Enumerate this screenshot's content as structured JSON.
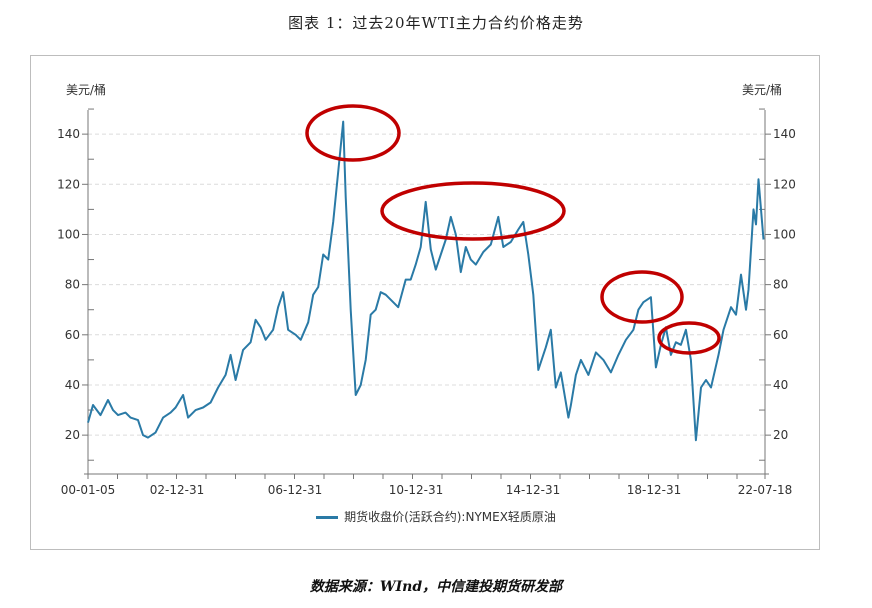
{
  "title": "图表 1：过去20年WTI主力合约价格走势",
  "source": "数据来源：WInd，中信建投期货研发部",
  "chart_data": {
    "type": "line",
    "title": "图表 1：过去20年WTI主力合约价格走势",
    "xlabel": "",
    "ylabel_left": "美元/桶",
    "ylabel_right": "美元/桶",
    "ylim": [
      0,
      150
    ],
    "yticks": [
      20,
      40,
      60,
      80,
      100,
      120,
      140
    ],
    "xtick_labels": [
      "00-01-05",
      "02-12-31",
      "06-12-31",
      "10-12-31",
      "14-12-31",
      "18-12-31",
      "22-07-18"
    ],
    "grid": "horizontal dashed",
    "legend_position": "bottom",
    "series": [
      {
        "name": "期货收盘价(活跃合约):NYMEX轻质原油",
        "color": "#2a7aa6",
        "x": [
          "2000-01",
          "2000-03",
          "2000-06",
          "2000-09",
          "2000-11",
          "2001-01",
          "2001-04",
          "2001-06",
          "2001-09",
          "2001-11",
          "2002-01",
          "2002-04",
          "2002-07",
          "2002-10",
          "2002-12",
          "2003-03",
          "2003-05",
          "2003-08",
          "2003-11",
          "2004-02",
          "2004-05",
          "2004-08",
          "2004-10",
          "2004-12",
          "2005-03",
          "2005-06",
          "2005-08",
          "2005-10",
          "2005-12",
          "2006-03",
          "2006-05",
          "2006-07",
          "2006-09",
          "2006-12",
          "2007-02",
          "2007-05",
          "2007-07",
          "2007-09",
          "2007-11",
          "2008-01",
          "2008-03",
          "2008-05",
          "2008-07",
          "2008-08",
          "2008-10",
          "2008-12",
          "2009-02",
          "2009-04",
          "2009-06",
          "2009-08",
          "2009-10",
          "2009-12",
          "2010-02",
          "2010-05",
          "2010-08",
          "2010-10",
          "2010-12",
          "2011-02",
          "2011-04",
          "2011-06",
          "2011-08",
          "2011-10",
          "2011-12",
          "2012-02",
          "2012-04",
          "2012-06",
          "2012-08",
          "2012-10",
          "2012-12",
          "2013-03",
          "2013-06",
          "2013-09",
          "2013-11",
          "2014-02",
          "2014-05",
          "2014-07",
          "2014-09",
          "2014-11",
          "2015-01",
          "2015-04",
          "2015-06",
          "2015-08",
          "2015-10",
          "2016-01",
          "2016-02",
          "2016-04",
          "2016-06",
          "2016-09",
          "2016-12",
          "2017-03",
          "2017-06",
          "2017-09",
          "2017-12",
          "2018-03",
          "2018-05",
          "2018-07",
          "2018-10",
          "2018-12",
          "2019-02",
          "2019-04",
          "2019-06",
          "2019-08",
          "2019-10",
          "2019-12",
          "2020-02",
          "2020-04",
          "2020-06",
          "2020-08",
          "2020-10",
          "2021-01",
          "2021-03",
          "2021-06",
          "2021-08",
          "2021-10",
          "2021-12",
          "2022-01",
          "2022-03",
          "2022-04",
          "2022-05",
          "2022-06",
          "2022-07"
        ],
        "values": [
          25,
          32,
          28,
          34,
          30,
          28,
          29,
          27,
          26,
          20,
          19,
          21,
          27,
          29,
          31,
          36,
          27,
          30,
          31,
          33,
          39,
          44,
          52,
          42,
          54,
          57,
          66,
          63,
          58,
          62,
          71,
          77,
          62,
          60,
          58,
          65,
          76,
          79,
          92,
          90,
          105,
          125,
          145,
          115,
          70,
          36,
          40,
          50,
          68,
          70,
          77,
          76,
          74,
          71,
          82,
          82,
          88,
          95,
          113,
          94,
          86,
          92,
          98,
          107,
          100,
          85,
          95,
          90,
          88,
          93,
          96,
          107,
          95,
          97,
          102,
          105,
          92,
          76,
          46,
          55,
          62,
          39,
          45,
          27,
          32,
          44,
          50,
          44,
          53,
          50,
          45,
          52,
          58,
          62,
          70,
          73,
          75,
          47,
          56,
          63,
          52,
          57,
          56,
          62,
          50,
          18,
          39,
          42,
          39,
          52,
          62,
          71,
          68,
          84,
          70,
          78,
          110,
          104,
          122,
          110,
          98
        ]
      }
    ],
    "annotations": [
      {
        "type": "ellipse",
        "color": "#c00000",
        "label": "2008 peak ~145"
      },
      {
        "type": "ellipse",
        "color": "#c00000",
        "label": "2011-2014 plateau ~100-110"
      },
      {
        "type": "ellipse",
        "color": "#c00000",
        "label": "2018 high ~75"
      },
      {
        "type": "ellipse",
        "color": "#c00000",
        "label": "2019 range ~55-65"
      }
    ]
  },
  "legend": {
    "label": "期货收盘价(活跃合约):NYMEX轻质原油"
  }
}
